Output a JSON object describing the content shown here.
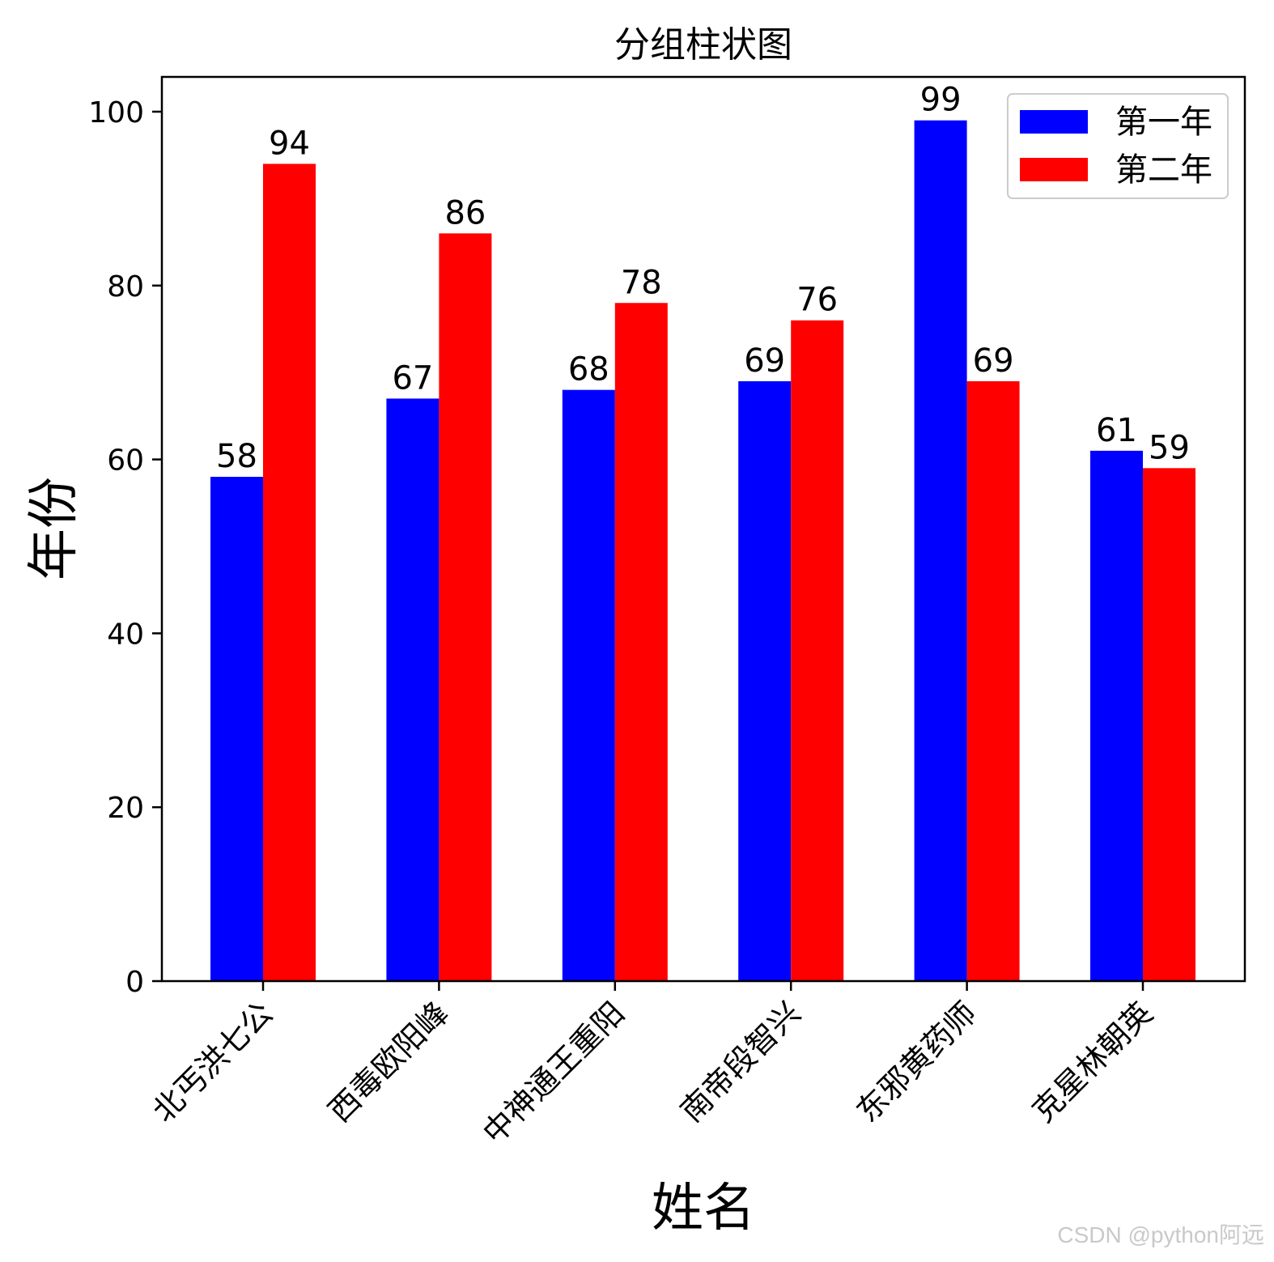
{
  "chart_data": {
    "type": "bar",
    "title": "分组柱状图",
    "xlabel": "姓名",
    "ylabel": "年份",
    "categories": [
      "北丐洪七公",
      "西毒欧阳峰",
      "中神通王重阳",
      "南帝段智兴",
      "东邪黄药师",
      "克星林朝英"
    ],
    "series": [
      {
        "name": "第一年",
        "color": "#0000ff",
        "values": [
          58,
          67,
          68,
          69,
          99,
          61
        ]
      },
      {
        "name": "第二年",
        "color": "#ff0000",
        "values": [
          94,
          86,
          78,
          76,
          69,
          59
        ]
      }
    ],
    "ylim": [
      0,
      104
    ],
    "yticks": [
      0,
      20,
      40,
      60,
      80,
      100
    ],
    "legend_position": "top-right",
    "grid": false,
    "x_tick_rotation": -45
  },
  "watermark": "CSDN @python阿远"
}
